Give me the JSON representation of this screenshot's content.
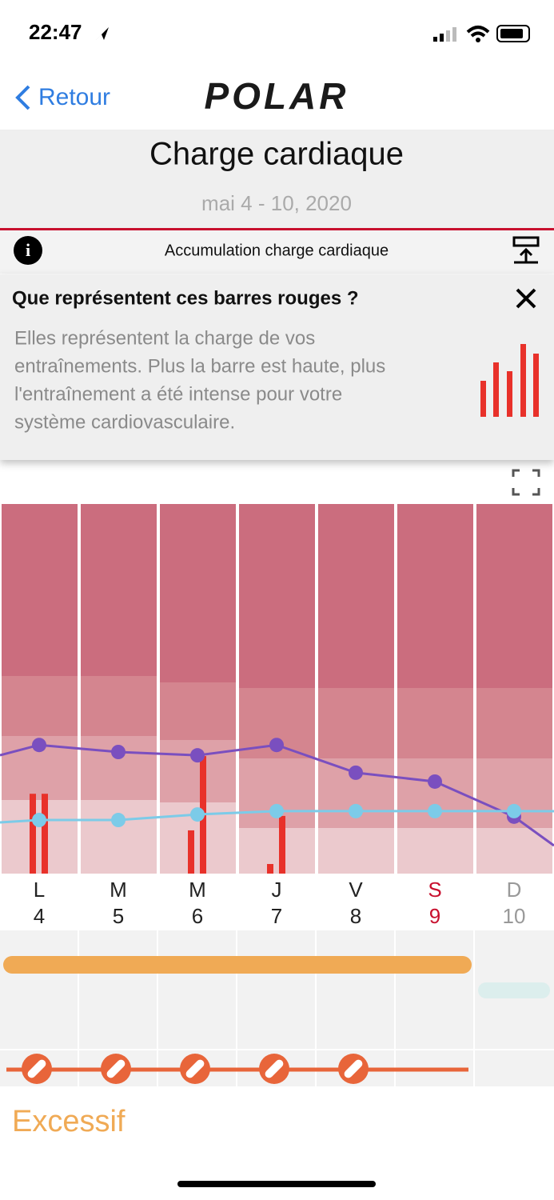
{
  "status_bar": {
    "time": "22:47"
  },
  "nav": {
    "back": "Retour",
    "logo": "POLAR"
  },
  "header": {
    "title": "Charge cardiaque",
    "date": "mai 4 - 10, 2020"
  },
  "info_row": {
    "label": "Accumulation charge cardiaque"
  },
  "popup": {
    "title": "Que représentent ces barres rouges ?",
    "lines": [
      "Elles représentent la charge de vos",
      "entraînements. Plus la barre est haute, plus",
      "l'entraînement a été intense pour votre",
      "système cardiovasculaire."
    ]
  },
  "chart_data": {
    "type": "line",
    "days": [
      "L",
      "M",
      "M",
      "J",
      "V",
      "S",
      "D"
    ],
    "dates": [
      "4",
      "5",
      "6",
      "7",
      "8",
      "9",
      "10"
    ],
    "day_colors": [
      "#222",
      "#222",
      "#222",
      "#222",
      "#222",
      "#c8102e",
      "#999"
    ],
    "ylim": [
      0,
      100
    ],
    "series": [
      {
        "color": "#7a4fbf",
        "values": [
          34.8,
          32.9,
          32.0,
          34.8,
          27.3,
          24.9,
          15.4
        ]
      },
      {
        "color": "#7ccbe8",
        "values": [
          14.5,
          14.5,
          16.0,
          16.9,
          16.9,
          16.9,
          16.9
        ]
      }
    ],
    "sessions": [
      [
        21.6,
        21.6
      ],
      [],
      [
        11.7,
        31.8
      ],
      [
        2.6,
        15.6
      ],
      [],
      [],
      []
    ],
    "session_color": "#e8312a"
  },
  "footer": {
    "status": "Excessif"
  }
}
